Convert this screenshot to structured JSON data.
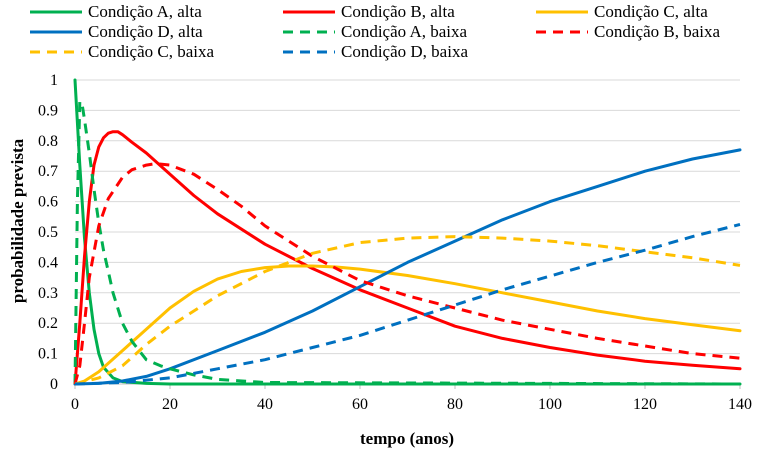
{
  "chart_data": {
    "type": "line",
    "title": "",
    "xlabel": "tempo (anos)",
    "ylabel": "probabilidade prevista",
    "xlim": [
      0,
      140
    ],
    "ylim": [
      0,
      1
    ],
    "xticks": [
      0,
      20,
      40,
      60,
      80,
      100,
      120,
      140
    ],
    "yticks": [
      0,
      0.1,
      0.2,
      0.3,
      0.4,
      0.5,
      0.6,
      0.7,
      0.8,
      0.9,
      1
    ],
    "ytick_labels": [
      "0",
      "0.1",
      "0.2",
      "0.3",
      "0.4",
      "0.5",
      "0.6",
      "0.7",
      "0.8",
      "0.9",
      "1"
    ],
    "grid": "horizontal",
    "legend_position": "top",
    "series": [
      {
        "name": "Condição A, alta",
        "color": "#00b050",
        "style": "solid",
        "x": [
          0,
          1,
          2,
          3,
          4,
          5,
          6,
          8,
          10,
          15,
          20,
          140
        ],
        "y": [
          1.0,
          0.72,
          0.48,
          0.3,
          0.18,
          0.1,
          0.055,
          0.02,
          0.008,
          0.002,
          0.0,
          0.0
        ]
      },
      {
        "name": "Condição B, alta",
        "color": "#ff0000",
        "style": "solid",
        "x": [
          0,
          1,
          2,
          3,
          4,
          5,
          6,
          7,
          8,
          9,
          10,
          12,
          15,
          20,
          25,
          30,
          40,
          50,
          60,
          70,
          80,
          90,
          100,
          110,
          120,
          130,
          140
        ],
        "y": [
          0.0,
          0.2,
          0.42,
          0.6,
          0.72,
          0.78,
          0.81,
          0.825,
          0.83,
          0.83,
          0.82,
          0.795,
          0.76,
          0.69,
          0.62,
          0.56,
          0.46,
          0.38,
          0.31,
          0.25,
          0.19,
          0.15,
          0.12,
          0.095,
          0.075,
          0.062,
          0.05
        ]
      },
      {
        "name": "Condição C, alta",
        "color": "#ffc000",
        "style": "solid",
        "x": [
          0,
          2,
          5,
          10,
          15,
          20,
          25,
          30,
          35,
          40,
          45,
          50,
          55,
          60,
          70,
          80,
          90,
          100,
          110,
          120,
          130,
          140
        ],
        "y": [
          0.0,
          0.01,
          0.04,
          0.11,
          0.18,
          0.25,
          0.305,
          0.345,
          0.37,
          0.383,
          0.388,
          0.388,
          0.385,
          0.378,
          0.357,
          0.33,
          0.3,
          0.27,
          0.24,
          0.215,
          0.195,
          0.175
        ]
      },
      {
        "name": "Condição D, alta",
        "color": "#0070c0",
        "style": "solid",
        "x": [
          0,
          5,
          10,
          15,
          20,
          30,
          40,
          50,
          60,
          70,
          80,
          90,
          100,
          110,
          120,
          130,
          140
        ],
        "y": [
          0.0,
          0.002,
          0.01,
          0.025,
          0.05,
          0.11,
          0.17,
          0.24,
          0.32,
          0.4,
          0.47,
          0.54,
          0.6,
          0.65,
          0.7,
          0.74,
          0.77
        ]
      },
      {
        "name": "Condição A, baixa",
        "color": "#00b050",
        "style": "dashed",
        "x": [
          0,
          0.5,
          1,
          1.5,
          2,
          3,
          4,
          5,
          6,
          7,
          8,
          10,
          12,
          15,
          18,
          20,
          25,
          30,
          40,
          140
        ],
        "y": [
          0.0,
          0.6,
          0.93,
          0.92,
          0.87,
          0.76,
          0.64,
          0.53,
          0.44,
          0.37,
          0.3,
          0.2,
          0.14,
          0.08,
          0.06,
          0.05,
          0.03,
          0.015,
          0.005,
          0.0
        ]
      },
      {
        "name": "Condição B, baixa",
        "color": "#ff0000",
        "style": "dashed",
        "x": [
          0,
          1,
          2,
          3,
          5,
          7,
          10,
          12,
          15,
          17,
          20,
          25,
          30,
          35,
          40,
          50,
          60,
          70,
          80,
          90,
          100,
          110,
          120,
          130,
          140
        ],
        "y": [
          0.0,
          0.06,
          0.2,
          0.35,
          0.52,
          0.61,
          0.68,
          0.705,
          0.72,
          0.725,
          0.72,
          0.69,
          0.64,
          0.585,
          0.52,
          0.42,
          0.34,
          0.29,
          0.25,
          0.21,
          0.18,
          0.15,
          0.125,
          0.1,
          0.085
        ]
      },
      {
        "name": "Condição C, baixa",
        "color": "#ffc000",
        "style": "dashed",
        "x": [
          0,
          5,
          10,
          15,
          20,
          25,
          30,
          40,
          50,
          60,
          70,
          80,
          90,
          100,
          110,
          120,
          130,
          140
        ],
        "y": [
          0.0,
          0.02,
          0.06,
          0.13,
          0.19,
          0.24,
          0.29,
          0.37,
          0.43,
          0.465,
          0.48,
          0.485,
          0.48,
          0.47,
          0.455,
          0.435,
          0.415,
          0.39
        ]
      },
      {
        "name": "Condição D, baixa",
        "color": "#0070c0",
        "style": "dashed",
        "x": [
          0,
          10,
          20,
          30,
          40,
          50,
          60,
          70,
          80,
          90,
          100,
          110,
          120,
          130,
          140
        ],
        "y": [
          0.0,
          0.005,
          0.02,
          0.05,
          0.08,
          0.12,
          0.16,
          0.21,
          0.26,
          0.31,
          0.355,
          0.4,
          0.44,
          0.485,
          0.525
        ]
      }
    ]
  }
}
